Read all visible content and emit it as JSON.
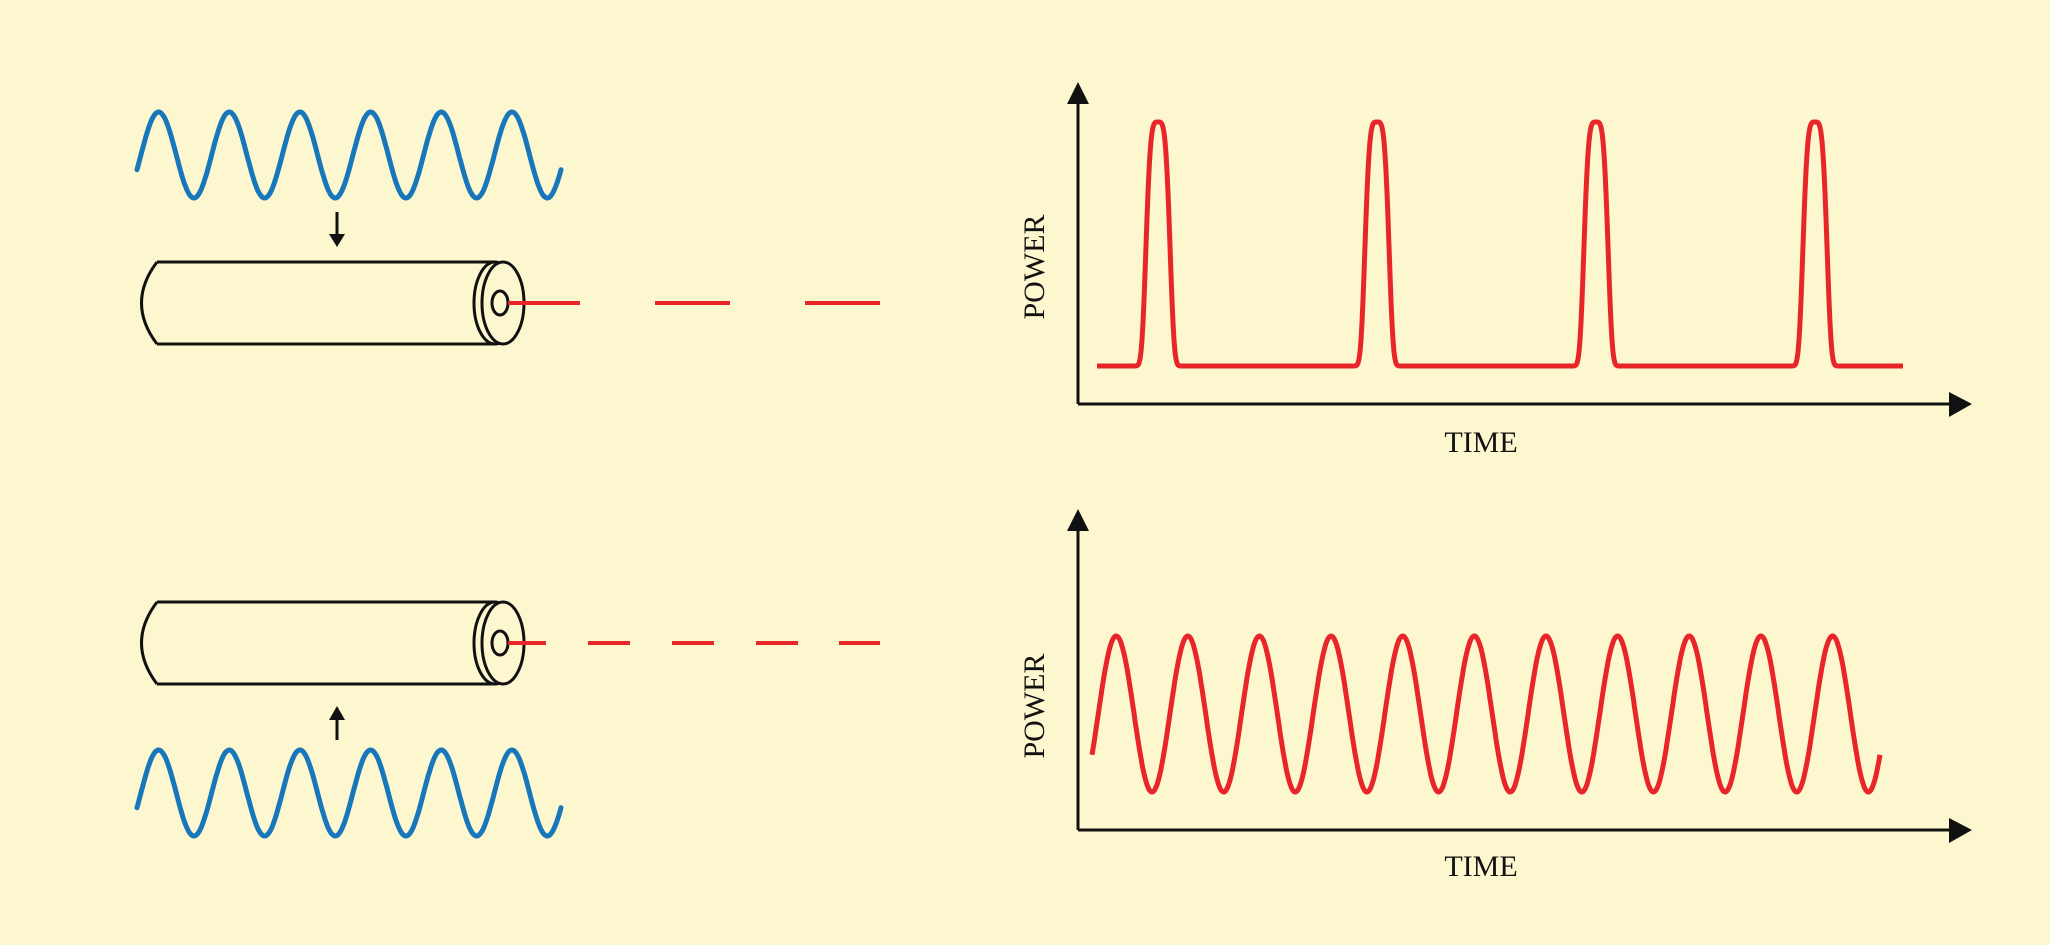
{
  "colors": {
    "background": "#fdf7cf",
    "pump_wave": "#1877bb",
    "laser_output": "#e8262a",
    "outline": "#111111"
  },
  "panels": [
    {
      "id": "top",
      "pump_side": "above",
      "pump_cycles": 6,
      "output_beam": "dashed red line",
      "plot": {
        "ylabel": "POWER",
        "xlabel": "TIME",
        "signal": "periodic short pulses",
        "pulse_count": 4
      }
    },
    {
      "id": "bottom",
      "pump_side": "below",
      "pump_cycles": 6,
      "output_beam": "dashed red line",
      "plot": {
        "ylabel": "POWER",
        "xlabel": "TIME",
        "signal": "sinusoidal modulation",
        "cycle_count": 11
      }
    }
  ]
}
